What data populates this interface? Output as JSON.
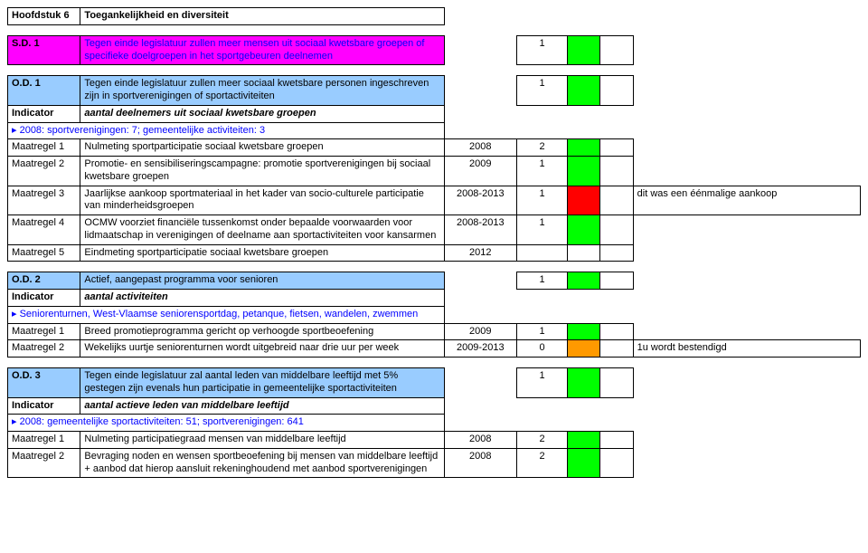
{
  "chapter": {
    "code": "Hoofdstuk 6",
    "title": "Toegankelijkheid en diversiteit"
  },
  "sd1": {
    "code": "S.D. 1",
    "desc": "Tegen einde legislatuur zullen meer mensen uit sociaal kwetsbare groepen of specifieke doelgroepen in het sportgebeuren deelnemen",
    "score": "1",
    "bg": "#ff00ff",
    "textColor": "#0000ff",
    "cellA_bg": "#00ff00"
  },
  "od1": {
    "code": "O.D. 1",
    "desc": "Tegen einde legislatuur zullen meer sociaal kwetsbare personen ingeschreven zijn in sportverenigingen of sportactiviteiten",
    "score": "1",
    "bg": "#99ccff",
    "cellA_bg": "#00ff00",
    "indicator_label": "Indicator",
    "indicator_text": "aantal deelnemers uit sociaal kwetsbare groepen",
    "note": "2008: sportverenigingen: 7; gemeentelijke activiteiten: 3",
    "rows": [
      {
        "label": "Maatregel 1",
        "text": "Nulmeting sportparticipatie sociaal kwetsbare groepen",
        "year": "2008",
        "score": "2",
        "a": "#00ff00",
        "b": "",
        "note": ""
      },
      {
        "label": "Maatregel 2",
        "text": "Promotie- en sensibiliseringscampagne: promotie sportverenigingen bij sociaal kwetsbare groepen",
        "year": "2009",
        "score": "1",
        "a": "#00ff00",
        "b": "",
        "note": ""
      },
      {
        "label": "Maatregel 3",
        "text": "Jaarlijkse aankoop sportmateriaal in het kader van socio-culturele participatie van minderheidsgroepen",
        "year": "2008-2013",
        "score": "1",
        "a": "#ff0000",
        "b": "",
        "note": "dit was een éénmalige aankoop"
      },
      {
        "label": "Maatregel 4",
        "text": "OCMW voorziet financiële tussenkomst onder bepaalde voorwaarden voor lidmaatschap in verenigingen of deelname aan sportactiviteiten voor kansarmen",
        "year": "2008-2013",
        "score": "1",
        "a": "#00ff00",
        "b": "",
        "note": ""
      },
      {
        "label": "Maatregel 5",
        "text": "Eindmeting sportparticipatie sociaal kwetsbare groepen",
        "year": "2012",
        "score": "",
        "a": "",
        "b": "",
        "note": ""
      }
    ]
  },
  "od2": {
    "code": "O.D. 2",
    "desc": "Actief, aangepast programma voor senioren",
    "score": "1",
    "bg": "#99ccff",
    "cellA_bg": "#00ff00",
    "indicator_label": "Indicator",
    "indicator_text": "aantal activiteiten",
    "note": "Seniorenturnen, West-Vlaamse seniorensportdag, petanque, fietsen, wandelen, zwemmen",
    "rows": [
      {
        "label": "Maatregel 1",
        "text": "Breed promotieprogramma gericht op verhoogde sportbeoefening",
        "year": "2009",
        "score": "1",
        "a": "#00ff00",
        "b": "",
        "note": ""
      },
      {
        "label": "Maatregel 2",
        "text": "Wekelijks uurtje seniorenturnen wordt uitgebreid naar drie uur per week",
        "year": "2009-2013",
        "score": "0",
        "a": "#ff9900",
        "b": "",
        "note": "1u wordt bestendigd"
      }
    ]
  },
  "od3": {
    "code": "O.D. 3",
    "desc": "Tegen einde legislatuur zal aantal leden van middelbare leeftijd met 5% gestegen zijn evenals hun participatie in gemeentelijke sportactiviteiten",
    "score": "1",
    "bg": "#99ccff",
    "cellA_bg": "#00ff00",
    "indicator_label": "Indicator",
    "indicator_text": "aantal actieve leden van middelbare leeftijd",
    "note": "2008: gemeentelijke sportactiviteiten: 51; sportverenigingen: 641",
    "rows": [
      {
        "label": "Maatregel 1",
        "text": "Nulmeting participatiegraad mensen van middelbare leeftijd",
        "year": "2008",
        "score": "2",
        "a": "#00ff00",
        "b": "",
        "note": ""
      },
      {
        "label": "Maatregel 2",
        "text": "Bevraging noden en wensen sportbeoefening bij mensen van middelbare leeftijd + aanbod dat hierop aansluit rekeninghoudend met aanbod sportverenigingen",
        "year": "2008",
        "score": "2",
        "a": "#00ff00",
        "b": "",
        "note": ""
      }
    ]
  }
}
